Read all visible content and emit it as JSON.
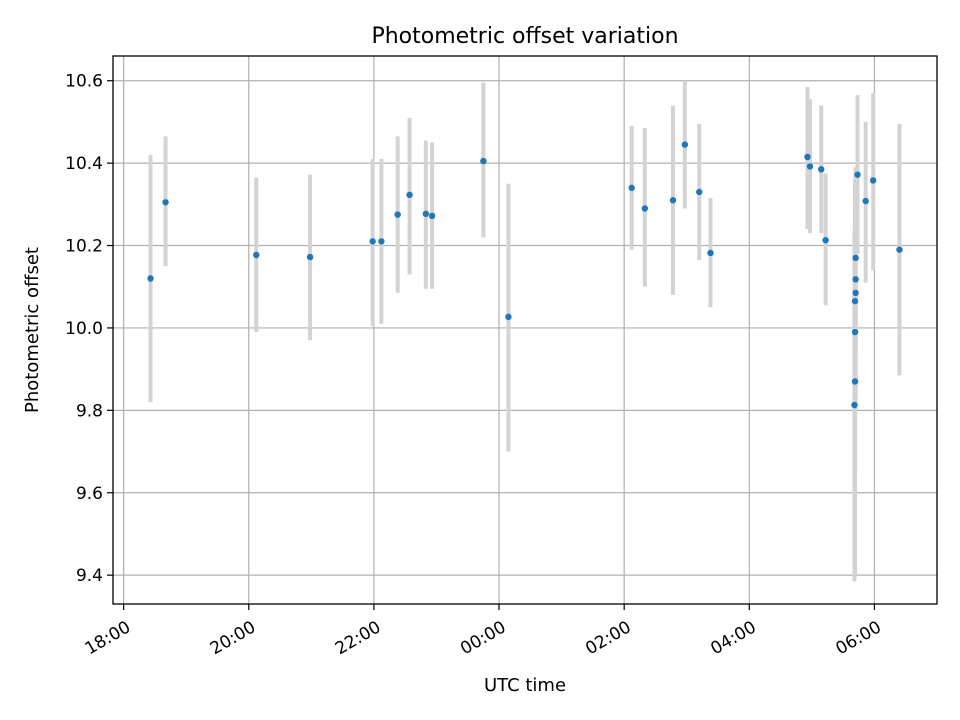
{
  "chart_data": {
    "type": "scatter",
    "title": "Photometric offset variation",
    "xlabel": "UTC time",
    "ylabel": "Photometric offset",
    "x_start": "18:00",
    "xlim_hours": [
      17.83,
      31.0
    ],
    "ylim": [
      9.33,
      10.66
    ],
    "x_ticks": [
      {
        "h": 18,
        "label": "18:00"
      },
      {
        "h": 20,
        "label": "20:00"
      },
      {
        "h": 22,
        "label": "22:00"
      },
      {
        "h": 24,
        "label": "00:00"
      },
      {
        "h": 26,
        "label": "02:00"
      },
      {
        "h": 28,
        "label": "04:00"
      },
      {
        "h": 30,
        "label": "06:00"
      }
    ],
    "y_ticks": [
      {
        "v": 9.4,
        "label": "9.4"
      },
      {
        "v": 9.6,
        "label": "9.6"
      },
      {
        "v": 9.8,
        "label": "9.8"
      },
      {
        "v": 10.0,
        "label": "10.0"
      },
      {
        "v": 10.2,
        "label": "10.2"
      },
      {
        "v": 10.4,
        "label": "10.4"
      },
      {
        "v": 10.6,
        "label": "10.6"
      }
    ],
    "grid": true,
    "error_color": "#d3d3d3",
    "marker_color": "#1f77b4",
    "points": [
      {
        "time": "18:26",
        "h": 18.43,
        "y": 10.12,
        "lo": 9.82,
        "hi": 10.42
      },
      {
        "time": "18:40",
        "h": 18.67,
        "y": 10.305,
        "lo": 10.15,
        "hi": 10.465
      },
      {
        "time": "20:07",
        "h": 20.12,
        "y": 10.177,
        "lo": 9.99,
        "hi": 10.365
      },
      {
        "time": "20:59",
        "h": 20.98,
        "y": 10.172,
        "lo": 9.97,
        "hi": 10.372
      },
      {
        "time": "21:59",
        "h": 21.98,
        "y": 10.21,
        "lo": 10.005,
        "hi": 10.41
      },
      {
        "time": "22:07",
        "h": 22.12,
        "y": 10.21,
        "lo": 10.01,
        "hi": 10.41
      },
      {
        "time": "22:23",
        "h": 22.38,
        "y": 10.275,
        "lo": 10.085,
        "hi": 10.465
      },
      {
        "time": "22:34",
        "h": 22.57,
        "y": 10.323,
        "lo": 10.13,
        "hi": 10.51
      },
      {
        "time": "22:50",
        "h": 22.83,
        "y": 10.277,
        "lo": 10.095,
        "hi": 10.455
      },
      {
        "time": "22:56",
        "h": 22.93,
        "y": 10.272,
        "lo": 10.095,
        "hi": 10.45
      },
      {
        "time": "23:45",
        "h": 23.75,
        "y": 10.405,
        "lo": 10.22,
        "hi": 10.595
      },
      {
        "time": "00:09",
        "h": 24.15,
        "y": 10.027,
        "lo": 9.7,
        "hi": 10.35
      },
      {
        "time": "02:07",
        "h": 26.12,
        "y": 10.34,
        "lo": 10.19,
        "hi": 10.49
      },
      {
        "time": "02:20",
        "h": 26.33,
        "y": 10.29,
        "lo": 10.1,
        "hi": 10.485
      },
      {
        "time": "02:47",
        "h": 26.78,
        "y": 10.31,
        "lo": 10.08,
        "hi": 10.54
      },
      {
        "time": "02:58",
        "h": 26.97,
        "y": 10.445,
        "lo": 10.29,
        "hi": 10.6
      },
      {
        "time": "03:12",
        "h": 27.2,
        "y": 10.33,
        "lo": 10.165,
        "hi": 10.495
      },
      {
        "time": "03:23",
        "h": 27.38,
        "y": 10.182,
        "lo": 10.05,
        "hi": 10.315
      },
      {
        "time": "04:56",
        "h": 28.93,
        "y": 10.415,
        "lo": 10.24,
        "hi": 10.585
      },
      {
        "time": "04:58",
        "h": 28.97,
        "y": 10.392,
        "lo": 10.23,
        "hi": 10.555
      },
      {
        "time": "05:09",
        "h": 29.15,
        "y": 10.385,
        "lo": 10.23,
        "hi": 10.54
      },
      {
        "time": "05:13",
        "h": 29.22,
        "y": 10.213,
        "lo": 10.055,
        "hi": 10.375
      },
      {
        "time": "05:41",
        "h": 29.68,
        "y": 9.813,
        "lo": 9.385,
        "hi": 10.235
      },
      {
        "time": "05:41",
        "h": 29.69,
        "y": 9.87,
        "lo": 9.4,
        "hi": 10.33
      },
      {
        "time": "05:41",
        "h": 29.69,
        "y": 9.99,
        "lo": 9.65,
        "hi": 10.35
      },
      {
        "time": "05:41",
        "h": 29.69,
        "y": 10.065,
        "lo": 9.78,
        "hi": 10.36
      },
      {
        "time": "05:42",
        "h": 29.7,
        "y": 10.085,
        "lo": 9.8,
        "hi": 10.37
      },
      {
        "time": "05:42",
        "h": 29.7,
        "y": 10.118,
        "lo": 9.85,
        "hi": 10.39
      },
      {
        "time": "05:42",
        "h": 29.7,
        "y": 10.17,
        "lo": 9.95,
        "hi": 10.39
      },
      {
        "time": "05:44",
        "h": 29.73,
        "y": 10.372,
        "lo": 10.18,
        "hi": 10.565
      },
      {
        "time": "05:52",
        "h": 29.86,
        "y": 10.308,
        "lo": 10.11,
        "hi": 10.5
      },
      {
        "time": "05:59",
        "h": 29.98,
        "y": 10.358,
        "lo": 10.14,
        "hi": 10.57
      },
      {
        "time": "06:24",
        "h": 30.4,
        "y": 10.19,
        "lo": 9.885,
        "hi": 10.495
      }
    ]
  }
}
